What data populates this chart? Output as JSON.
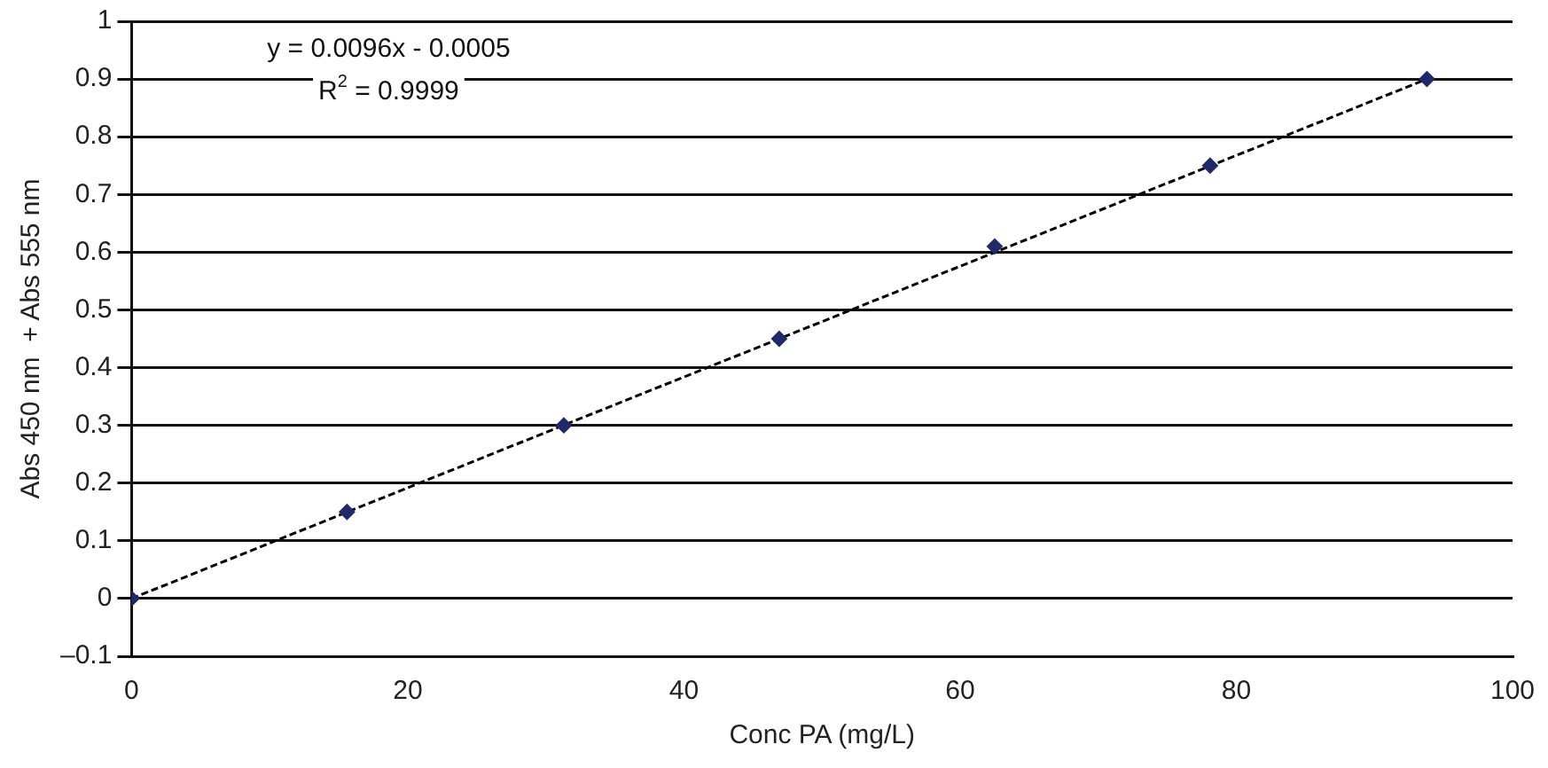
{
  "chart_data": {
    "type": "scatter",
    "xlabel": "Conc PA (mg/L)",
    "ylabel": "Abs 450 nm  + Abs 555 nm",
    "x": [
      0,
      15.6,
      31.3,
      46.9,
      62.5,
      78.1,
      93.8
    ],
    "series": [
      {
        "type": "scatter",
        "color": "#1f2a6b",
        "marker": "diamond",
        "values": [
          0,
          0.15,
          0.3,
          0.45,
          0.61,
          0.75,
          0.9
        ]
      },
      {
        "type": "line",
        "color": "#000000",
        "line_style": "dashed",
        "marker": "none",
        "x": [
          0,
          93.8
        ],
        "values": [
          0,
          0.9
        ]
      }
    ],
    "annotations": [
      "y = 0.0096x - 0.0005",
      "R$^{2}$ = 0.9999"
    ],
    "xlim": [
      0,
      100
    ],
    "xticks": [
      0,
      20,
      40,
      60,
      80,
      100
    ],
    "ylim": [
      -0.1,
      1
    ],
    "yticks": [
      {
        "value": -0.1,
        "label": "–0.1"
      },
      0,
      0.1,
      0.2,
      0.3,
      0.4,
      0.5,
      0.6,
      0.7,
      0.8,
      0.9,
      1
    ],
    "grid": "y",
    "legend": false
  }
}
